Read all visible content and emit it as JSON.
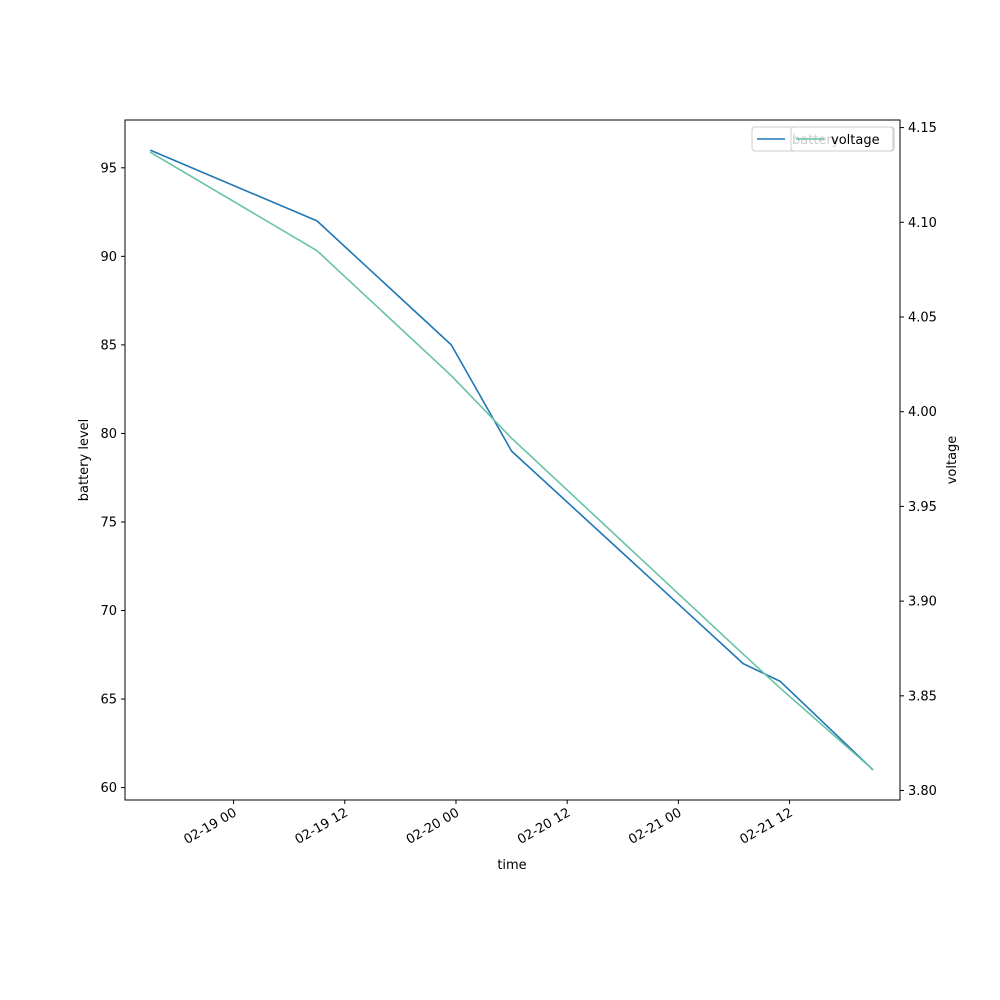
{
  "chart_data": {
    "type": "line",
    "xlabel": "time",
    "ylabel": "battery level",
    "y2label": "voltage",
    "x_ticks": [
      "02-19 00",
      "02-19 12",
      "02-20 00",
      "02-20 12",
      "02-21 00",
      "02-21 12"
    ],
    "y_ticks": [
      "60",
      "65",
      "70",
      "75",
      "80",
      "85",
      "90",
      "95"
    ],
    "y2_ticks": [
      "3.80",
      "3.85",
      "3.90",
      "3.95",
      "4.00",
      "4.05",
      "4.10",
      "4.15"
    ],
    "xlim": [
      "2024-02-18 12:17",
      "2024-02-21 23:55"
    ],
    "ylim": [
      59.3,
      97.7
    ],
    "y2lim": [
      3.795,
      4.154
    ],
    "grid": false,
    "legend_position": "top-right",
    "series": [
      {
        "name": "battery",
        "axis": "left",
        "color": "#1f77b4",
        "x": [
          "2024-02-18 15:00",
          "2024-02-19 09:00",
          "2024-02-19 23:30",
          "2024-02-20 06:00",
          "2024-02-21 07:00",
          "2024-02-21 11:00",
          "2024-02-21 21:00"
        ],
        "values": [
          96,
          92,
          85,
          79,
          67,
          66,
          61
        ]
      },
      {
        "name": "voltage",
        "axis": "right",
        "color": "#66c2a5",
        "x": [
          "2024-02-18 15:00",
          "2024-02-19 09:00",
          "2024-02-19 23:30",
          "2024-02-20 06:00",
          "2024-02-21 07:00",
          "2024-02-21 11:00",
          "2024-02-21 21:00"
        ],
        "values": [
          4.137,
          4.085,
          4.019,
          3.986,
          3.872,
          3.854,
          3.811
        ]
      }
    ]
  }
}
